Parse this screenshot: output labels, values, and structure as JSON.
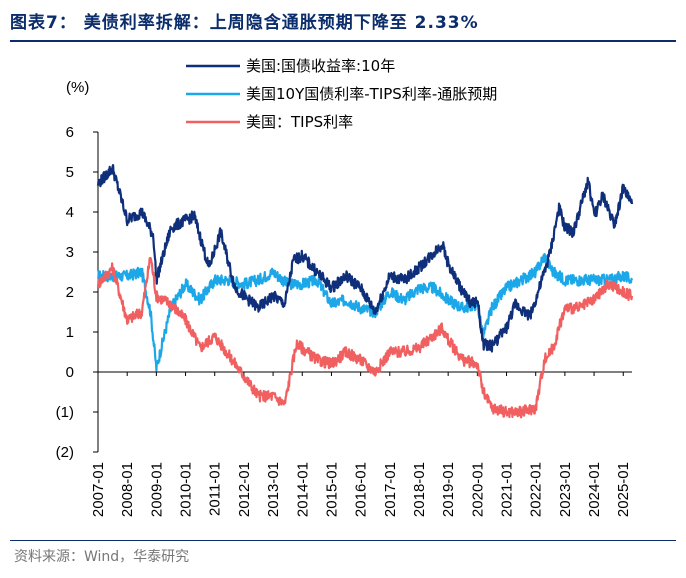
{
  "header": {
    "title": "图表7： 美债利率拆解：上周隐含通胀预期下降至 2.33%"
  },
  "footer": {
    "source": "资料来源：Wind，华泰研究"
  },
  "colors": {
    "nominal": "#0f2f7a",
    "breakeven": "#1ca8e8",
    "tips": "#f06060",
    "axis": "#000000"
  },
  "chart_data": {
    "type": "line",
    "ylabel": "(%)",
    "ylim": [
      -2,
      6
    ],
    "yticks": [
      "6",
      "5",
      "4",
      "3",
      "2",
      "1",
      "0",
      "(1)",
      "(2)"
    ],
    "xticks": [
      "2007-01",
      "2008-01",
      "2009-01",
      "2010-01",
      "2011-01",
      "2012-01",
      "2013-01",
      "2014-01",
      "2015-01",
      "2016-01",
      "2017-01",
      "2018-01",
      "2019-01",
      "2020-01",
      "2021-01",
      "2022-01",
      "2023-01",
      "2024-01",
      "2025-01"
    ],
    "legend_position": "top-left",
    "series": [
      {
        "name": "美国:国债收益率:10年",
        "key": "nominal",
        "x": [
          2007.0,
          2007.5,
          2008.0,
          2008.5,
          2008.9,
          2009.0,
          2009.5,
          2010.0,
          2010.3,
          2010.8,
          2011.2,
          2011.7,
          2012.0,
          2012.5,
          2013.0,
          2013.4,
          2013.7,
          2014.0,
          2014.5,
          2015.0,
          2015.5,
          2016.0,
          2016.5,
          2017.0,
          2017.5,
          2018.0,
          2018.8,
          2019.0,
          2019.5,
          2019.8,
          2020.0,
          2020.2,
          2020.5,
          2021.0,
          2021.3,
          2021.8,
          2022.0,
          2022.3,
          2022.5,
          2022.8,
          2023.0,
          2023.3,
          2023.8,
          2024.0,
          2024.3,
          2024.7,
          2025.0,
          2025.3
        ],
        "y": [
          4.7,
          5.1,
          3.8,
          4.0,
          3.4,
          2.3,
          3.6,
          3.8,
          3.9,
          2.6,
          3.5,
          2.1,
          1.9,
          1.6,
          1.9,
          1.7,
          2.8,
          2.9,
          2.5,
          2.1,
          2.4,
          2.1,
          1.5,
          2.4,
          2.3,
          2.6,
          3.2,
          2.7,
          2.0,
          1.7,
          1.8,
          0.7,
          0.65,
          1.1,
          1.7,
          1.4,
          1.8,
          2.5,
          3.0,
          4.1,
          3.6,
          3.5,
          4.8,
          3.9,
          4.4,
          3.7,
          4.6,
          4.2
        ]
      },
      {
        "name": "美国10Y国债利率-TIPS利率-通胀预期",
        "key": "breakeven",
        "x": [
          2007.0,
          2007.5,
          2008.0,
          2008.5,
          2008.8,
          2009.0,
          2009.5,
          2010.0,
          2010.5,
          2011.0,
          2011.5,
          2012.0,
          2012.5,
          2013.0,
          2013.5,
          2014.0,
          2014.5,
          2015.0,
          2015.5,
          2016.0,
          2016.5,
          2017.0,
          2017.5,
          2018.0,
          2018.5,
          2019.0,
          2019.5,
          2020.0,
          2020.2,
          2020.5,
          2021.0,
          2021.5,
          2022.0,
          2022.3,
          2022.6,
          2023.0,
          2023.5,
          2024.0,
          2024.5,
          2025.0,
          2025.3
        ],
        "y": [
          2.4,
          2.4,
          2.4,
          2.5,
          1.5,
          0.1,
          1.6,
          2.2,
          1.8,
          2.3,
          2.3,
          2.2,
          2.3,
          2.5,
          2.2,
          2.2,
          2.3,
          1.7,
          1.8,
          1.6,
          1.5,
          2.0,
          1.8,
          2.1,
          2.1,
          1.8,
          1.6,
          1.7,
          0.9,
          1.6,
          2.1,
          2.3,
          2.5,
          2.9,
          2.5,
          2.3,
          2.3,
          2.3,
          2.3,
          2.4,
          2.3
        ]
      },
      {
        "name": "美国：TIPS利率",
        "key": "tips",
        "x": [
          2007.0,
          2007.5,
          2008.0,
          2008.5,
          2008.8,
          2009.0,
          2009.5,
          2010.0,
          2010.5,
          2011.0,
          2011.5,
          2012.0,
          2012.5,
          2013.0,
          2013.4,
          2013.8,
          2014.0,
          2014.5,
          2015.0,
          2015.5,
          2016.0,
          2016.5,
          2017.0,
          2017.5,
          2018.0,
          2018.8,
          2019.0,
          2019.5,
          2020.0,
          2020.2,
          2020.5,
          2021.0,
          2021.5,
          2022.0,
          2022.3,
          2022.6,
          2023.0,
          2023.5,
          2024.0,
          2024.5,
          2025.0,
          2025.3
        ],
        "y": [
          2.2,
          2.6,
          1.3,
          1.5,
          2.9,
          1.9,
          1.7,
          1.3,
          0.6,
          0.9,
          0.4,
          -0.1,
          -0.6,
          -0.6,
          -0.8,
          0.7,
          0.6,
          0.3,
          0.2,
          0.5,
          0.3,
          0.0,
          0.5,
          0.5,
          0.6,
          1.1,
          0.8,
          0.3,
          0.2,
          -0.5,
          -0.9,
          -1.0,
          -1.0,
          -0.9,
          0.3,
          0.6,
          1.6,
          1.6,
          1.8,
          2.2,
          2.0,
          1.9
        ]
      }
    ]
  }
}
